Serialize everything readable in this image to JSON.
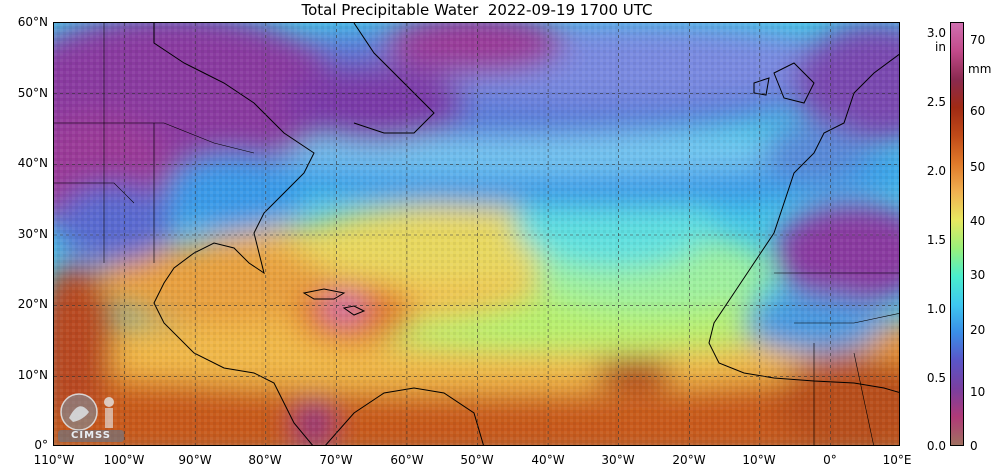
{
  "title": "Total Precipitable Water  2022-09-19 1700 UTC",
  "map": {
    "extent": {
      "lon_min": -110,
      "lon_max": 10,
      "lat_min": 0,
      "lat_max": 60
    },
    "lat_labels": [
      "60°N",
      "50°N",
      "40°N",
      "30°N",
      "20°N",
      "10°N",
      "0°"
    ],
    "lon_labels": [
      "110°W",
      "100°W",
      "90°W",
      "80°W",
      "70°W",
      "60°W",
      "50°W",
      "40°W",
      "30°W",
      "20°W",
      "10°W",
      "0°",
      "10°E"
    ],
    "gridlines": "dashed every 10°"
  },
  "colorbar": {
    "inch_unit": "in",
    "mm_unit": "mm",
    "inch_labels": [
      "3.0",
      "2.5",
      "2.0",
      "1.5",
      "1.0",
      "0.5",
      "0.0"
    ],
    "mm_labels": [
      "70",
      "60",
      "50",
      "40",
      "30",
      "20",
      "10",
      "0"
    ],
    "colors": [
      "#a07060",
      "#b03a78",
      "#7a3fa0",
      "#5a55c8",
      "#3a8ee8",
      "#3ec8f0",
      "#4aeecc",
      "#9af07a",
      "#e8e860",
      "#f0b050",
      "#e07a2a",
      "#c04a18",
      "#a02a14",
      "#8a2a50",
      "#c24a8a",
      "#d070b0"
    ]
  },
  "logo": {
    "text": "CIMSS"
  }
}
